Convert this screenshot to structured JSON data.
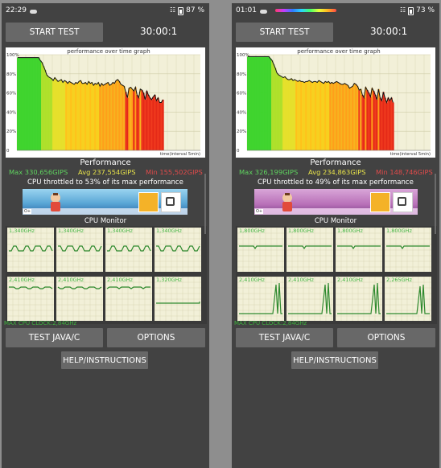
{
  "phones": [
    {
      "status": {
        "time": "22:29",
        "battery": "87 %"
      },
      "buttons": {
        "start": "START TEST",
        "java": "TEST JAVA/C",
        "options": "OPTIONS",
        "help": "HELP/INSTRUCTIONS"
      },
      "timer": "30:00:1",
      "graph_title": "performance over time graph",
      "xaxis_label": "time(interval 5min)",
      "yticks": [
        "100%",
        "80%",
        "60%",
        "40%",
        "20%",
        "0"
      ],
      "performance_label": "Performance",
      "stats": {
        "max": "Max 330,656GIPS",
        "avg": "Avg 237,554GIPS",
        "min": "Min 155,502GIPS"
      },
      "throttle_text": "CPU throttled to 53% of its max performance",
      "cpu_monitor_label": "CPU Monitor",
      "cores": [
        {
          "freq": "1,340GHz"
        },
        {
          "freq": "1,340GHz"
        },
        {
          "freq": "1,340GHz"
        },
        {
          "freq": "1,340GHz"
        },
        {
          "freq": "2,410GHz"
        },
        {
          "freq": "2,410GHz"
        },
        {
          "freq": "2,410GHz"
        },
        {
          "freq": "1,320GHz"
        }
      ],
      "max_cpu_clock": "MAX CPU CLOCK:2,84GHz",
      "ad": {
        "badge": "O+"
      },
      "chart_data": {
        "type": "bar",
        "title": "performance over time graph",
        "xlabel": "time(interval 5min)",
        "ylabel": "",
        "ylim": [
          0,
          100
        ],
        "values": [
          97,
          97,
          97,
          97,
          97,
          97,
          97,
          97,
          97,
          97,
          97,
          97,
          97,
          97,
          94,
          92,
          88,
          84,
          79,
          77,
          76,
          75,
          73,
          76,
          74,
          72,
          73,
          74,
          71,
          73,
          72,
          70,
          72,
          71,
          70,
          69,
          71,
          70,
          72,
          73,
          70,
          70,
          71,
          69,
          72,
          70,
          71,
          68,
          70,
          69,
          71,
          67,
          70,
          68,
          69,
          70,
          71,
          68,
          69,
          71,
          70,
          73,
          74,
          72,
          69,
          68,
          67,
          61,
          55,
          65,
          66,
          64,
          62,
          66,
          58,
          55,
          64,
          63,
          60,
          53,
          62,
          58,
          55,
          53,
          56,
          58,
          52,
          55,
          50,
          50,
          53
        ],
        "annotations": []
      }
    },
    {
      "status": {
        "time": "01:01",
        "battery": "73 %"
      },
      "buttons": {
        "start": "START TEST",
        "java": "TEST JAVA/C",
        "options": "OPTIONS",
        "help": "HELP/INSTRUCTIONS"
      },
      "timer": "30:00:1",
      "graph_title": "performance over time graph",
      "xaxis_label": "time(interval 5min)",
      "yticks": [
        "100%",
        "80%",
        "60%",
        "40%",
        "20%",
        "0"
      ],
      "performance_label": "Performance",
      "stats": {
        "max": "Max 326,199GIPS",
        "avg": "Avg 234,863GIPS",
        "min": "Min 148,746GIPS"
      },
      "throttle_text": "CPU throttled to 49% of its max performance",
      "cpu_monitor_label": "CPU Monitor",
      "cores": [
        {
          "freq": "1,800GHz"
        },
        {
          "freq": "1,800GHz"
        },
        {
          "freq": "1,800GHz"
        },
        {
          "freq": "1,800GHz"
        },
        {
          "freq": "2,410GHz"
        },
        {
          "freq": "2,410GHz"
        },
        {
          "freq": "2,410GHz"
        },
        {
          "freq": "2,265GHz"
        }
      ],
      "max_cpu_clock": "MAX CPU CLOCK:2,84GHz",
      "ad": {
        "badge": "O+"
      },
      "chart_data": {
        "type": "bar",
        "title": "performance over time graph",
        "xlabel": "time(interval 5min)",
        "ylabel": "",
        "ylim": [
          0,
          100
        ],
        "values": [
          98,
          98,
          98,
          98,
          98,
          98,
          98,
          98,
          98,
          98,
          98,
          98,
          98,
          98,
          96,
          94,
          90,
          86,
          81,
          79,
          78,
          77,
          76,
          77,
          75,
          74,
          74,
          75,
          73,
          74,
          73,
          72,
          73,
          72,
          72,
          71,
          72,
          72,
          73,
          72,
          71,
          72,
          72,
          71,
          73,
          72,
          71,
          70,
          72,
          71,
          72,
          70,
          71,
          70,
          71,
          72,
          71,
          70,
          69,
          69,
          70,
          69,
          68,
          65,
          66,
          67,
          70,
          69,
          67,
          63,
          64,
          58,
          55,
          66,
          63,
          60,
          56,
          65,
          62,
          58,
          53,
          64,
          55,
          52,
          61,
          55,
          50,
          55,
          52,
          55,
          50
        ],
        "annotations": []
      }
    }
  ]
}
